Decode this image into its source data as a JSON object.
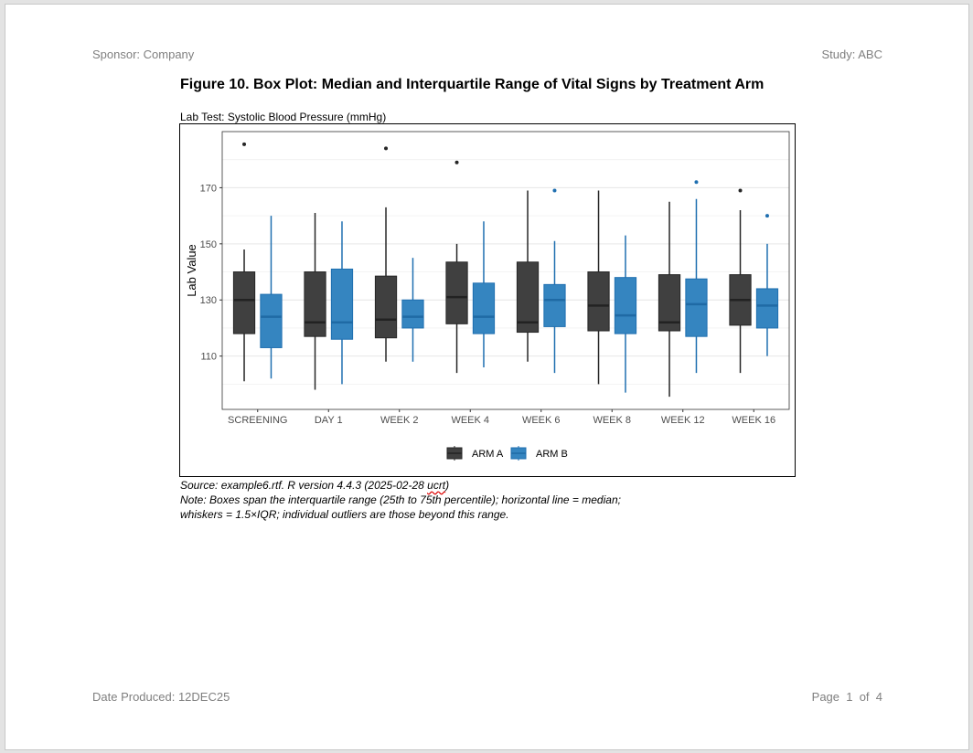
{
  "header": {
    "sponsor": "Sponsor: Company",
    "study": "Study: ABC"
  },
  "title": "Figure 10. Box Plot: Median and Interquartile Range of Vital Signs by Treatment Arm",
  "subtitle": "Lab Test: Systolic Blood Pressure (mmHg)",
  "notes": {
    "source_prefix": "Source: example6.rtf. R version 4.4.3 (2025-02-28 ",
    "source_ucrt": "ucrt",
    "source_suffix": ")",
    "line2": "Note: Boxes span the interquartile range (25th to 75th percentile); horizontal line = median;",
    "line3": "whiskers = 1.5×IQR; individual outliers are those beyond this range."
  },
  "footer": {
    "date": "Date Produced: 12DEC25",
    "page": "Page  1  of  4"
  },
  "chart_data": {
    "type": "box",
    "xlabel": "",
    "ylabel": "Lab Value",
    "ylim": [
      91,
      190
    ],
    "yticks": [
      110,
      130,
      150,
      170
    ],
    "grid": true,
    "legend_position": "bottom",
    "categories": [
      "SCREENING",
      "DAY 1",
      "WEEK 2",
      "WEEK 4",
      "WEEK 6",
      "WEEK 8",
      "WEEK 12",
      "WEEK 16"
    ],
    "series": [
      {
        "name": "ARM A",
        "color": "#404040",
        "stroke": "#262626",
        "boxes": [
          {
            "low": 101,
            "q1": 118,
            "median": 130,
            "q3": 140,
            "high": 148,
            "outliers": [
              185.5
            ]
          },
          {
            "low": 98,
            "q1": 117,
            "median": 122,
            "q3": 140,
            "high": 161,
            "outliers": []
          },
          {
            "low": 108,
            "q1": 116.5,
            "median": 123,
            "q3": 138.5,
            "high": 163,
            "outliers": [
              184
            ]
          },
          {
            "low": 104,
            "q1": 121.5,
            "median": 131,
            "q3": 143.5,
            "high": 150,
            "outliers": [
              179
            ]
          },
          {
            "low": 108,
            "q1": 118.5,
            "median": 122,
            "q3": 143.5,
            "high": 169,
            "outliers": []
          },
          {
            "low": 100,
            "q1": 119,
            "median": 128,
            "q3": 140,
            "high": 169,
            "outliers": []
          },
          {
            "low": 95.5,
            "q1": 119,
            "median": 122,
            "q3": 139,
            "high": 165,
            "outliers": []
          },
          {
            "low": 104,
            "q1": 121,
            "median": 130,
            "q3": 139,
            "high": 162,
            "outliers": [
              169
            ]
          }
        ]
      },
      {
        "name": "ARM B",
        "color": "#3585c0",
        "stroke": "#1f6fb0",
        "boxes": [
          {
            "low": 102,
            "q1": 113,
            "median": 124,
            "q3": 132,
            "high": 160,
            "outliers": []
          },
          {
            "low": 100,
            "q1": 116,
            "median": 122,
            "q3": 141,
            "high": 158,
            "outliers": []
          },
          {
            "low": 108,
            "q1": 120,
            "median": 124,
            "q3": 130,
            "high": 145,
            "outliers": []
          },
          {
            "low": 106,
            "q1": 118,
            "median": 124,
            "q3": 136,
            "high": 158,
            "outliers": []
          },
          {
            "low": 104,
            "q1": 120.5,
            "median": 130,
            "q3": 135.5,
            "high": 151,
            "outliers": [
              169
            ]
          },
          {
            "low": 97,
            "q1": 118,
            "median": 124.5,
            "q3": 138,
            "high": 153,
            "outliers": []
          },
          {
            "low": 104,
            "q1": 117,
            "median": 128.5,
            "q3": 137.5,
            "high": 166,
            "outliers": [
              172
            ]
          },
          {
            "low": 110,
            "q1": 120,
            "median": 128,
            "q3": 134,
            "high": 150,
            "outliers": [
              160
            ]
          }
        ]
      }
    ]
  }
}
